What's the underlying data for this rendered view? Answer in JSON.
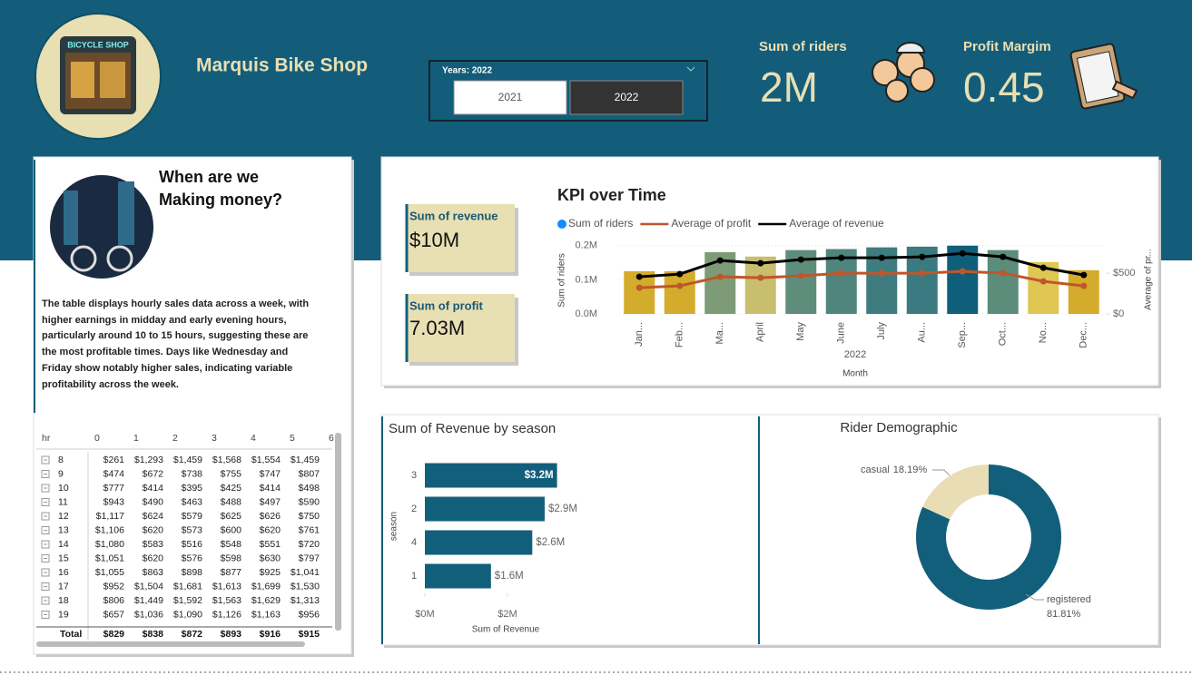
{
  "header": {
    "title": "Marquis Bike Shop",
    "logo_text": "BICYCLE SHOP"
  },
  "slicer": {
    "label": "Years: 2022",
    "options": [
      "2021",
      "2022"
    ],
    "selected": "2022"
  },
  "kpi_cards": [
    {
      "label": "Sum of riders",
      "value": "2M"
    },
    {
      "label": "Profit Margim",
      "value": "0.45"
    },
    {
      "label": "Sum of revenue",
      "value": "$10M"
    },
    {
      "label": "Sum of profit",
      "value": "7.03M"
    }
  ],
  "story": {
    "title_lines": [
      "When are we",
      "Making money?"
    ],
    "text": "The table displays hourly sales data across a week, with higher earnings in midday and early evening hours, particularly around 10 to 15 hours, suggesting these are the most profitable times. Days like Wednesday and Friday show notably higher sales, indicating variable profitability across the week."
  },
  "table": {
    "columns": [
      "hr",
      "0",
      "1",
      "2",
      "3",
      "4",
      "5",
      "6"
    ],
    "rows": [
      [
        "8",
        "$261",
        "$1,293",
        "$1,459",
        "$1,568",
        "$1,554",
        "$1,459"
      ],
      [
        "9",
        "$474",
        "$672",
        "$738",
        "$755",
        "$747",
        "$807"
      ],
      [
        "10",
        "$777",
        "$414",
        "$395",
        "$425",
        "$414",
        "$498"
      ],
      [
        "11",
        "$943",
        "$490",
        "$463",
        "$488",
        "$497",
        "$590"
      ],
      [
        "12",
        "$1,117",
        "$624",
        "$579",
        "$625",
        "$626",
        "$750"
      ],
      [
        "13",
        "$1,106",
        "$620",
        "$573",
        "$600",
        "$620",
        "$761"
      ],
      [
        "14",
        "$1,080",
        "$583",
        "$516",
        "$548",
        "$551",
        "$720"
      ],
      [
        "15",
        "$1,051",
        "$620",
        "$576",
        "$598",
        "$630",
        "$797"
      ],
      [
        "16",
        "$1,055",
        "$863",
        "$898",
        "$877",
        "$925",
        "$1,041"
      ],
      [
        "17",
        "$952",
        "$1,504",
        "$1,681",
        "$1,613",
        "$1,699",
        "$1,530"
      ],
      [
        "18",
        "$806",
        "$1,449",
        "$1,592",
        "$1,563",
        "$1,629",
        "$1,313"
      ],
      [
        "19",
        "$657",
        "$1,036",
        "$1,090",
        "$1,126",
        "$1,163",
        "$956"
      ]
    ],
    "total": [
      "Total",
      "$829",
      "$838",
      "$872",
      "$893",
      "$916",
      "$915"
    ]
  },
  "chart_data": [
    {
      "type": "combo",
      "title": "KPI over Time",
      "categories": [
        "Jan...",
        "Feb...",
        "Ma...",
        "April",
        "May",
        "June",
        "July",
        "Au...",
        "Sep...",
        "Oct...",
        "No...",
        "Dec..."
      ],
      "x_group": "2022",
      "xlabel": "Month",
      "ylabel": "Sum of riders",
      "y2label": "Average of pr...",
      "ylim": [
        0,
        210000
      ],
      "yticks": [
        {
          "value": 0,
          "label": "0.0M"
        },
        {
          "value": 100000,
          "label": "0.1M"
        },
        {
          "value": 200000,
          "label": "0.2M"
        }
      ],
      "y2lim": [
        0,
        880
      ],
      "y2ticks": [
        {
          "value": 0,
          "label": "$0"
        },
        {
          "value": 500,
          "label": "$500"
        }
      ],
      "grid": true,
      "series": [
        {
          "name": "Sum of riders",
          "type": "bar",
          "color": "#118dff",
          "colors": [
            "#d4ac2b",
            "#d4ac2b",
            "#7c9b76",
            "#c9bd6e",
            "#5e8e7b",
            "#4f857d",
            "#3e7c80",
            "#3a7a80",
            "#0f5f7a",
            "#5b8d7a",
            "#e0c653",
            "#d4ac2b"
          ],
          "values": [
            125000,
            125000,
            181000,
            168000,
            187000,
            190000,
            195000,
            197000,
            200000,
            187000,
            152000,
            128000
          ]
        },
        {
          "name": "Average of profit",
          "type": "line",
          "axis": "y2",
          "color": "#c0562b",
          "values": [
            322,
            344,
            456,
            444,
            467,
            500,
            500,
            500,
            522,
            500,
            400,
            344
          ]
        },
        {
          "name": "Average of revenue",
          "type": "line",
          "axis": "y2",
          "color": "#000000",
          "values": [
            456,
            489,
            656,
            622,
            667,
            689,
            689,
            700,
            744,
            700,
            567,
            478
          ]
        }
      ]
    },
    {
      "type": "hbar",
      "title": "Sum of Revenue by season",
      "categories": [
        "3",
        "2",
        "4",
        "1"
      ],
      "values": [
        3200000,
        2900000,
        2600000,
        1600000
      ],
      "value_labels": [
        "$3.2M",
        "$2.9M",
        "$2.6M",
        "$1.6M"
      ],
      "color": "#125f7b",
      "xlim": [
        0,
        4000000
      ],
      "xticks": [
        {
          "value": 0,
          "label": "$0M"
        },
        {
          "value": 2000000,
          "label": "$2M"
        }
      ],
      "xlabel": "Sum of Revenue",
      "ylabel": "season"
    },
    {
      "type": "donut",
      "title": "Rider Demographic",
      "categories": [
        "casual",
        "registered"
      ],
      "values": [
        18.19,
        81.81
      ],
      "value_labels": [
        "18.19%",
        "81.81%"
      ],
      "colors": [
        "#e8ddb5",
        "#125f7b"
      ]
    }
  ]
}
